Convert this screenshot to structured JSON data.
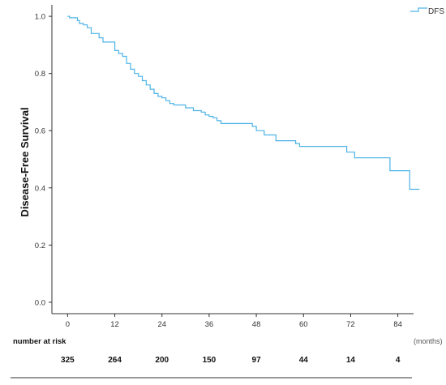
{
  "chart_data": {
    "type": "line",
    "step": true,
    "ylabel": "Disease-Free Survival",
    "xunit": "(months)",
    "xlim": [
      -4,
      88
    ],
    "ylim": [
      -0.04,
      1.04
    ],
    "xticks": [
      0,
      12,
      24,
      36,
      48,
      60,
      72,
      84
    ],
    "yticks": [
      0.0,
      0.2,
      0.4,
      0.6,
      0.8,
      1.0
    ],
    "ytick_labels": [
      "0.0",
      "0.2",
      "0.4",
      "0.6",
      "0.8",
      "1.0"
    ],
    "legend": {
      "position": "top-right",
      "entries": [
        "DFS"
      ]
    },
    "grid": false,
    "series": [
      {
        "name": "DFS",
        "color": "#4db3e6",
        "points": [
          [
            0,
            1.0
          ],
          [
            0.5,
            0.995
          ],
          [
            2.5,
            0.985
          ],
          [
            3,
            0.975
          ],
          [
            4,
            0.97
          ],
          [
            5,
            0.96
          ],
          [
            6,
            0.94
          ],
          [
            8,
            0.925
          ],
          [
            9,
            0.91
          ],
          [
            12,
            0.88
          ],
          [
            13,
            0.87
          ],
          [
            14,
            0.86
          ],
          [
            15,
            0.835
          ],
          [
            16,
            0.815
          ],
          [
            17,
            0.8
          ],
          [
            18,
            0.79
          ],
          [
            19,
            0.775
          ],
          [
            20,
            0.76
          ],
          [
            21,
            0.745
          ],
          [
            22,
            0.73
          ],
          [
            23,
            0.72
          ],
          [
            24,
            0.715
          ],
          [
            25,
            0.705
          ],
          [
            26,
            0.695
          ],
          [
            27,
            0.69
          ],
          [
            30,
            0.68
          ],
          [
            32,
            0.67
          ],
          [
            34,
            0.665
          ],
          [
            35,
            0.655
          ],
          [
            36,
            0.65
          ],
          [
            37,
            0.645
          ],
          [
            38,
            0.635
          ],
          [
            39,
            0.625
          ],
          [
            47,
            0.615
          ],
          [
            48,
            0.6
          ],
          [
            50,
            0.585
          ],
          [
            53,
            0.565
          ],
          [
            58,
            0.555
          ],
          [
            59,
            0.545
          ],
          [
            71,
            0.525
          ],
          [
            73,
            0.505
          ],
          [
            82,
            0.46
          ],
          [
            87,
            0.395
          ],
          [
            89.5,
            0.395
          ]
        ]
      }
    ],
    "risk_table": {
      "title": "number at risk",
      "values": [
        325,
        264,
        200,
        150,
        97,
        44,
        14,
        4
      ]
    }
  }
}
